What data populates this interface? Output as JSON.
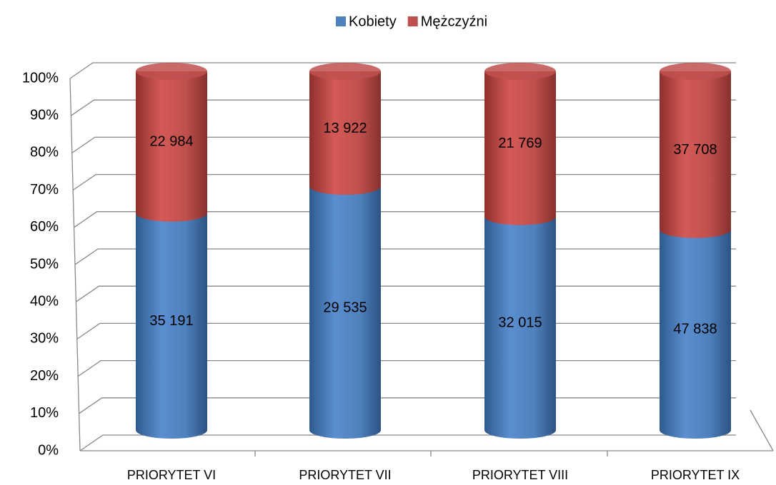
{
  "chart_data": {
    "type": "bar",
    "stacked": "percent",
    "shape": "cylinder",
    "categories": [
      "PRIORYTET VI",
      "PRIORYTET VII",
      "PRIORYTET VIII",
      "PRIORYTET IX"
    ],
    "series": [
      {
        "name": "Kobiety",
        "color": "#4f81bd",
        "values": [
          35191,
          29535,
          32015,
          47838
        ],
        "value_labels": [
          "35 191",
          "29 535",
          "32 015",
          "47 838"
        ]
      },
      {
        "name": "Mężczyźni",
        "color": "#c0504d",
        "values": [
          22984,
          13922,
          21769,
          37708
        ],
        "value_labels": [
          "22 984",
          "13 922",
          "21 769",
          "37 708"
        ]
      }
    ],
    "ylim": [
      0,
      100
    ],
    "yticks": [
      {
        "value": 0,
        "label": "0%"
      },
      {
        "value": 10,
        "label": "10%"
      },
      {
        "value": 20,
        "label": "20%"
      },
      {
        "value": 30,
        "label": "30%"
      },
      {
        "value": 40,
        "label": "40%"
      },
      {
        "value": 50,
        "label": "50%"
      },
      {
        "value": 60,
        "label": "60%"
      },
      {
        "value": 70,
        "label": "70%"
      },
      {
        "value": 80,
        "label": "80%"
      },
      {
        "value": 90,
        "label": "90%"
      },
      {
        "value": 100,
        "label": "100%"
      }
    ],
    "grid": true,
    "legend": "top"
  }
}
